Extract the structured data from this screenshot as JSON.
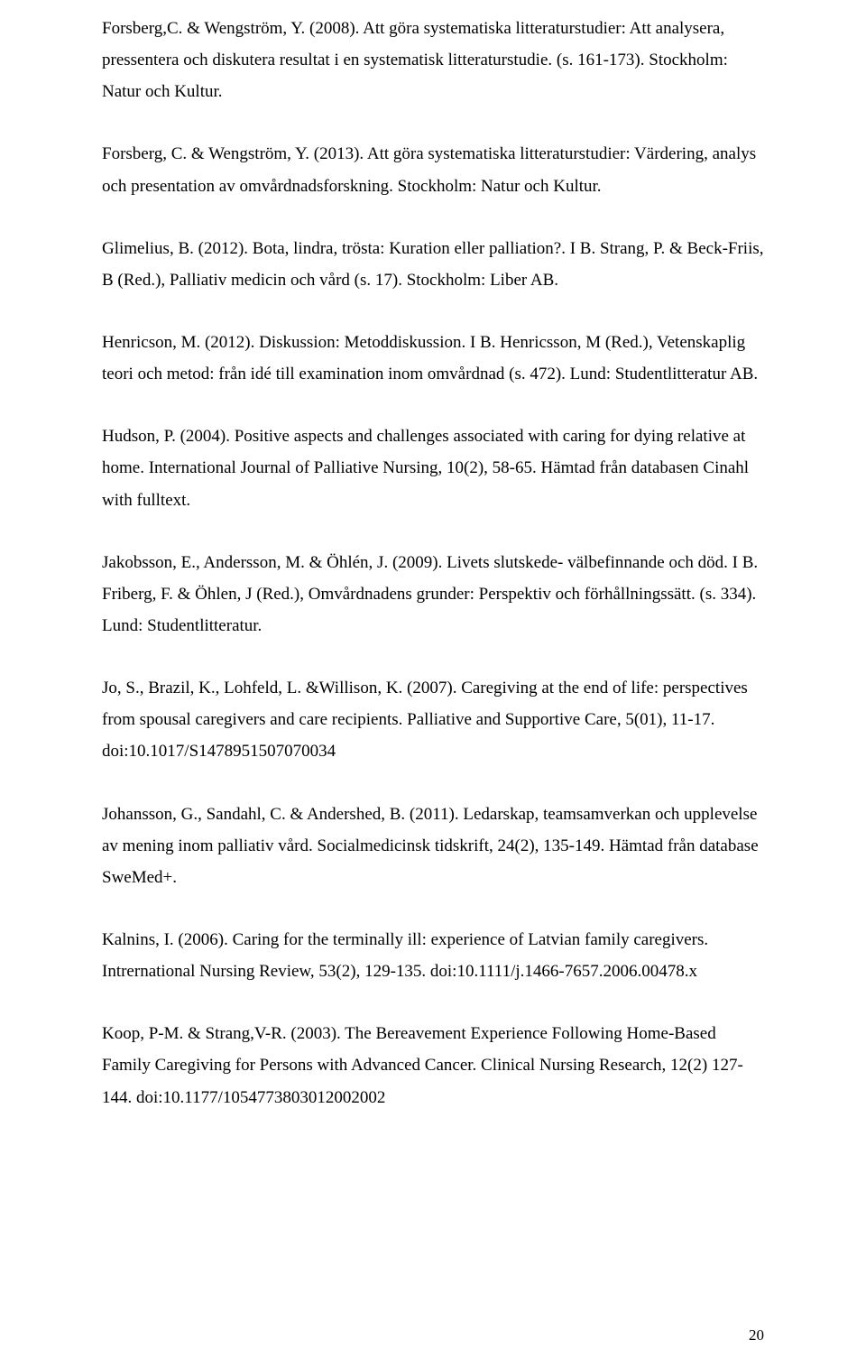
{
  "references": [
    {
      "text": "Forsberg,C. & Wengström, Y. (2008). Att göra systematiska litteraturstudier: Att analysera, pressentera och diskutera resultat i en systematisk litteraturstudie. (s. 161-173). Stockholm: Natur och Kultur."
    },
    {
      "text": "Forsberg, C. & Wengström, Y. (2013). Att göra systematiska litteraturstudier: Värdering, analys och presentation av omvårdnadsforskning. Stockholm: Natur och Kultur."
    },
    {
      "text": "Glimelius, B. (2012). Bota, lindra, trösta: Kuration eller palliation?. I B. Strang, P. & Beck-Friis, B (Red.), Palliativ medicin och vård (s. 17). Stockholm: Liber AB."
    },
    {
      "text": "Henricson, M. (2012). Diskussion: Metoddiskussion. I B. Henricsson, M (Red.), Vetenskaplig teori och metod: från idé till examination inom omvårdnad (s. 472). Lund: Studentlitteratur AB."
    },
    {
      "text": "Hudson, P. (2004). Positive aspects and challenges associated with caring for dying relative at home. International Journal of Palliative Nursing, 10(2), 58-65. Hämtad från databasen Cinahl with fulltext."
    },
    {
      "text": "Jakobsson, E., Andersson, M. & Öhlén, J. (2009). Livets slutskede- välbefinnande och död. I B. Friberg, F. & Öhlen, J (Red.), Omvårdnadens grunder: Perspektiv och förhållningssätt. (s. 334). Lund: Studentlitteratur."
    },
    {
      "text": "Jo, S., Brazil, K., Lohfeld, L. &Willison, K. (2007). Caregiving at the end of life: perspectives from spousal caregivers and care recipients. Palliative and Supportive Care, 5(01), 11-17. doi:10.1017/S1478951507070034"
    },
    {
      "text": "Johansson, G., Sandahl, C. & Andershed, B. (2011). Ledarskap, teamsamverkan och upplevelse av mening inom palliativ vård. Socialmedicinsk tidskrift, 24(2), 135-149. Hämtad från database SweMed+."
    },
    {
      "text": "Kalnins, I. (2006). Caring for the terminally ill: experience of Latvian family caregivers. Intrernational Nursing Review, 53(2), 129-135. doi:10.1111/j.1466-7657.2006.00478.x"
    },
    {
      "text": "Koop, P-M. & Strang,V-R. (2003). The Bereavement Experience Following Home-Based Family Caregiving for Persons with Advanced Cancer. Clinical Nursing Research, 12(2) 127-144. doi:10.1177/1054773803012002002"
    }
  ],
  "pageNumber": "20"
}
